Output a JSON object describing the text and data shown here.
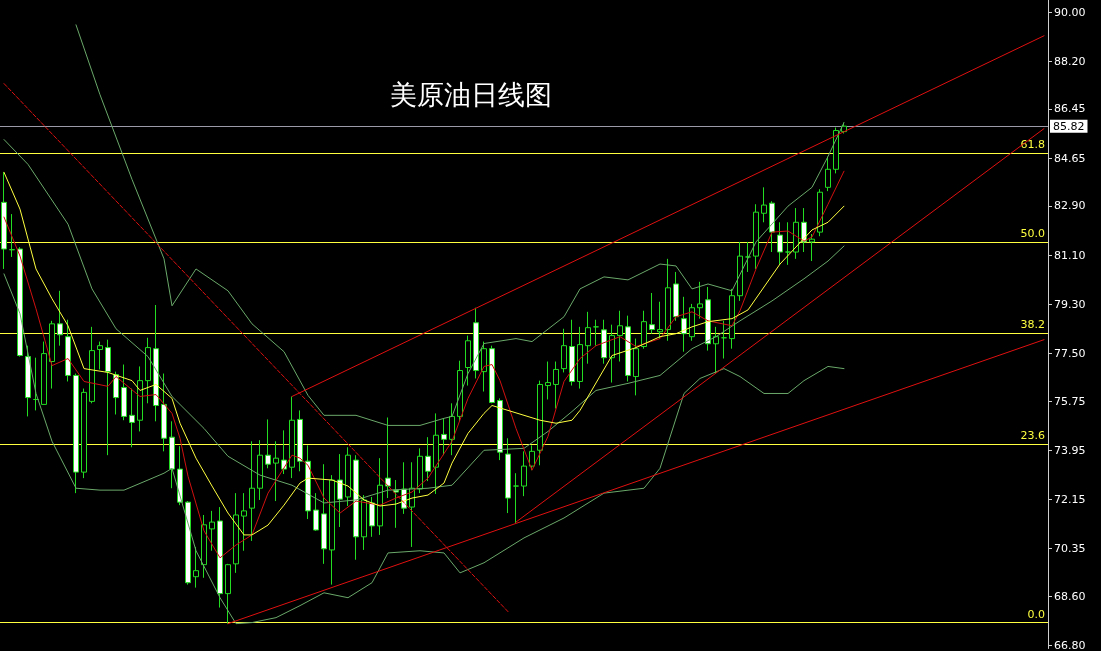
{
  "chart_data": {
    "type": "candlestick",
    "title": "美原油日线图",
    "color": "#22dd22",
    "grid": false,
    "marker": "none",
    "tick_labels": "y",
    "categories": [
      null,
      null,
      null,
      null,
      null,
      null,
      null,
      null,
      null,
      null,
      null,
      null,
      null,
      null,
      null,
      null,
      null,
      null,
      null,
      null,
      null,
      null,
      null,
      null,
      null,
      null,
      null,
      null,
      null,
      null,
      null,
      null,
      null,
      null,
      null,
      null,
      null,
      null,
      null,
      null,
      null,
      null,
      null,
      null,
      null,
      null,
      null,
      null,
      null,
      null,
      null,
      null,
      null,
      null,
      null,
      null,
      null,
      null,
      null,
      null,
      null,
      null,
      null,
      null,
      null,
      null,
      null,
      null,
      null,
      null,
      null,
      null,
      null,
      null,
      null,
      null,
      null,
      null,
      null,
      null,
      null,
      null,
      null,
      null,
      null,
      null,
      null,
      null,
      null,
      null,
      null,
      null,
      null,
      null,
      null,
      null,
      null,
      null,
      null,
      null,
      null,
      null,
      null,
      null,
      null,
      null,
      null,
      null,
      null,
      null,
      null,
      null,
      null,
      null,
      null,
      null,
      null,
      null,
      null,
      null,
      null,
      null,
      null,
      null,
      null,
      null,
      null,
      null,
      null,
      null,
      null
    ],
    "ohlc": [
      [
        83.03,
        84.13,
        80.59,
        81.32
      ],
      [
        81.29,
        82.6,
        81.03,
        81.3
      ],
      [
        81.32,
        81.39,
        77.38,
        77.42
      ],
      [
        77.38,
        77.78,
        75.19,
        75.88
      ],
      [
        75.81,
        77.34,
        75.41,
        75.81
      ],
      [
        75.63,
        77.93,
        75.63,
        77.49
      ],
      [
        77.2,
        78.69,
        76.21,
        78.58
      ],
      [
        78.58,
        79.79,
        77.78,
        78.18
      ],
      [
        78.11,
        78.73,
        76.47,
        76.69
      ],
      [
        76.69,
        76.76,
        72.38,
        73.15
      ],
      [
        73.15,
        76.21,
        72.93,
        76.07
      ],
      [
        75.74,
        78.47,
        75.67,
        77.6
      ],
      [
        77.64,
        77.93,
        76.91,
        77.78
      ],
      [
        77.71,
        78.0,
        73.77,
        76.83
      ],
      [
        76.72,
        76.83,
        75.26,
        75.88
      ],
      [
        76.25,
        77.09,
        75.05,
        75.19
      ],
      [
        75.23,
        76.21,
        74.06,
        74.97
      ],
      [
        75.05,
        77.02,
        74.64,
        76.5
      ],
      [
        76.5,
        78.07,
        75.67,
        77.71
      ],
      [
        77.67,
        79.27,
        75.01,
        75.59
      ],
      [
        75.63,
        76.76,
        73.91,
        74.39
      ],
      [
        74.43,
        75.01,
        72.56,
        73.26
      ],
      [
        73.26,
        74.1,
        71.94,
        72.05
      ],
      [
        72.05,
        72.09,
        69.03,
        69.1
      ],
      [
        69.32,
        70.41,
        68.92,
        69.54
      ],
      [
        69.76,
        71.58,
        69.28,
        71.22
      ],
      [
        71.07,
        71.73,
        70.27,
        71.32
      ],
      [
        71.36,
        71.87,
        68.19,
        68.7
      ],
      [
        68.7,
        69.79,
        67.6,
        69.76
      ],
      [
        69.79,
        72.38,
        69.46,
        71.58
      ],
      [
        71.54,
        72.38,
        70.27,
        71.73
      ],
      [
        71.83,
        74.28,
        70.63,
        72.56
      ],
      [
        72.56,
        74.32,
        72.13,
        73.77
      ],
      [
        73.77,
        75.08,
        73.29,
        73.44
      ],
      [
        73.48,
        74.28,
        72.09,
        73.66
      ],
      [
        73.59,
        74.68,
        73.08,
        73.26
      ],
      [
        73.33,
        75.92,
        72.93,
        75.05
      ],
      [
        75.08,
        75.41,
        73.18,
        73.55
      ],
      [
        73.55,
        74.13,
        71.43,
        71.73
      ],
      [
        71.76,
        72.38,
        71.0,
        71.03
      ],
      [
        71.62,
        73.44,
        69.79,
        70.34
      ],
      [
        70.3,
        73.04,
        69.03,
        72.86
      ],
      [
        72.86,
        73.81,
        71.14,
        72.16
      ],
      [
        72.24,
        74.06,
        71.91,
        73.77
      ],
      [
        73.59,
        73.77,
        69.94,
        70.78
      ],
      [
        70.78,
        72.31,
        70.3,
        72.13
      ],
      [
        72.02,
        72.24,
        70.78,
        71.18
      ],
      [
        71.18,
        73.66,
        70.85,
        72.67
      ],
      [
        72.93,
        75.15,
        72.2,
        72.64
      ],
      [
        72.49,
        72.86,
        71.11,
        72.42
      ],
      [
        72.53,
        73.51,
        71.62,
        71.83
      ],
      [
        71.87,
        73.51,
        70.41,
        72.56
      ],
      [
        72.53,
        74.02,
        72.38,
        73.73
      ],
      [
        73.73,
        74.43,
        72.82,
        73.18
      ],
      [
        73.33,
        75.3,
        72.35,
        74.5
      ],
      [
        74.53,
        75.12,
        73.77,
        74.35
      ],
      [
        74.35,
        75.67,
        73.77,
        75.19
      ],
      [
        75.19,
        77.23,
        75.01,
        76.87
      ],
      [
        76.98,
        78.15,
        76.32,
        77.96
      ],
      [
        78.62,
        79.17,
        76.58,
        76.87
      ],
      [
        76.83,
        77.93,
        76.1,
        77.67
      ],
      [
        77.67,
        77.78,
        75.67,
        75.7
      ],
      [
        75.77,
        75.85,
        73.59,
        73.88
      ],
      [
        73.81,
        74.39,
        71.65,
        72.2
      ],
      [
        72.64,
        73.11,
        71.29,
        72.64
      ],
      [
        72.64,
        73.91,
        72.27,
        73.37
      ],
      [
        73.37,
        74.13,
        73.22,
        73.91
      ],
      [
        73.95,
        76.5,
        73.4,
        76.36
      ],
      [
        76.32,
        77.2,
        75.81,
        76.43
      ],
      [
        76.36,
        77.2,
        75.48,
        76.91
      ],
      [
        76.94,
        78.4,
        76.8,
        77.78
      ],
      [
        77.75,
        78.73,
        76.32,
        76.47
      ],
      [
        76.47,
        78.47,
        76.21,
        77.82
      ],
      [
        77.78,
        79.02,
        77.12,
        78.44
      ],
      [
        78.47,
        78.73,
        77.78,
        78.47
      ],
      [
        78.36,
        78.73,
        77.12,
        77.34
      ],
      [
        77.34,
        78.55,
        76.43,
        78.15
      ],
      [
        78.15,
        79.06,
        77.2,
        78.51
      ],
      [
        78.47,
        78.88,
        76.47,
        76.69
      ],
      [
        76.65,
        78.04,
        75.96,
        77.67
      ],
      [
        77.75,
        79.06,
        77.67,
        78.66
      ],
      [
        78.55,
        79.71,
        78.22,
        78.37
      ],
      [
        78.29,
        79.39,
        78.04,
        78.37
      ],
      [
        78.37,
        80.96,
        77.96,
        79.9
      ],
      [
        80.04,
        80.48,
        78.69,
        78.84
      ],
      [
        78.77,
        79.57,
        77.56,
        78.22
      ],
      [
        78.11,
        79.31,
        77.96,
        79.17
      ],
      [
        79.17,
        80.12,
        78.77,
        79.31
      ],
      [
        79.46,
        79.93,
        77.6,
        77.85
      ],
      [
        77.85,
        78.47,
        76.76,
        78.11
      ],
      [
        78.07,
        78.69,
        77.31,
        78.07
      ],
      [
        78.04,
        79.86,
        77.67,
        79.61
      ],
      [
        79.61,
        81.58,
        79.42,
        81.06
      ],
      [
        81.03,
        81.58,
        80.48,
        81.03
      ],
      [
        81.06,
        82.96,
        80.59,
        82.67
      ],
      [
        82.63,
        83.58,
        82.3,
        82.93
      ],
      [
        83.0,
        83.07,
        81.21,
        81.94
      ],
      [
        81.83,
        82.3,
        80.74,
        81.21
      ],
      [
        81.21,
        82.3,
        80.74,
        81.21
      ],
      [
        81.21,
        82.82,
        80.96,
        82.3
      ],
      [
        82.3,
        82.82,
        81.21,
        81.58
      ],
      [
        81.58,
        81.87,
        80.88,
        81.68
      ],
      [
        81.94,
        83.51,
        81.79,
        83.4
      ],
      [
        83.58,
        84.71,
        83.44,
        84.24
      ],
      [
        84.24,
        85.77,
        84.09,
        85.66
      ],
      [
        85.62,
        85.95,
        85.55,
        85.82
      ],
      null,
      null,
      null,
      null,
      null,
      null,
      null,
      null,
      null,
      null,
      null,
      null,
      null,
      null,
      null,
      null,
      null,
      null,
      null,
      null,
      null,
      null,
      null,
      null,
      null
    ],
    "series": [
      {
        "type": "line",
        "color": "#6aa86a",
        "values": [
          null,
          null,
          null,
          null,
          null,
          null,
          null,
          null,
          null,
          89.53,
          null,
          null,
          86.97,
          null,
          null,
          null,
          83.87,
          null,
          null,
          null,
          80.96,
          79.24,
          null,
          null,
          80.59,
          null,
          null,
          null,
          79.79,
          null,
          null,
          78.58,
          null,
          null,
          null,
          77.56,
          null,
          null,
          75.96,
          null,
          75.23,
          null,
          null,
          null,
          75.23,
          null,
          null,
          null,
          74.86,
          null,
          null,
          null,
          74.86,
          null,
          null,
          75.12,
          75.19,
          null,
          76.76,
          null,
          77.86,
          null,
          null,
          null,
          78.04,
          null,
          77.93,
          null,
          null,
          null,
          78.84,
          null,
          79.86,
          null,
          null,
          80.3,
          null,
          null,
          80.19,
          null,
          null,
          null,
          80.77,
          null,
          80.7,
          null,
          79.86,
          null,
          80.04,
          null,
          null,
          79.79,
          null,
          null,
          81.58,
          null,
          null,
          null,
          82.89,
          null,
          null,
          83.58,
          null,
          84.71,
          null,
          85.95,
          null,
          null,
          null,
          null,
          null,
          null,
          null,
          null,
          null,
          null,
          null,
          null,
          null,
          null,
          null,
          null,
          null,
          null,
          null,
          null,
          null,
          null,
          null,
          null,
          null
        ]
      },
      {
        "type": "line",
        "color": "#6aa86a",
        "values": [
          85.33,
          null,
          null,
          84.42,
          null,
          null,
          null,
          null,
          82.23,
          null,
          null,
          79.86,
          null,
          null,
          78.4,
          null,
          null,
          null,
          77.38,
          null,
          null,
          75.92,
          null,
          null,
          null,
          74.75,
          null,
          null,
          73.73,
          null,
          null,
          null,
          73.04,
          null,
          null,
          null,
          72.67,
          null,
          null,
          null,
          72.02,
          null,
          null,
          null,
          72.13,
          null,
          null,
          null,
          72.49,
          null,
          null,
          null,
          null,
          72.56,
          null,
          null,
          72.67,
          null,
          null,
          null,
          73.95,
          null,
          null,
          null,
          null,
          74.02,
          null,
          null,
          74.64,
          null,
          null,
          75.37,
          null,
          null,
          76.14,
          null,
          null,
          null,
          76.4,
          null,
          null,
          null,
          76.69,
          null,
          null,
          null,
          77.67,
          null,
          null,
          78.11,
          null,
          null,
          78.69,
          null,
          null,
          null,
          79.42,
          null,
          null,
          null,
          80.23,
          null,
          null,
          80.88,
          null,
          81.43,
          null,
          null,
          null,
          null,
          null,
          null,
          null,
          null,
          null,
          null,
          null,
          null,
          null,
          null,
          null,
          null,
          null,
          null,
          null,
          null,
          null,
          null,
          null,
          null,
          null
        ]
      },
      {
        "type": "line",
        "color": "#6aa86a",
        "values": [
          80.41,
          null,
          78.95,
          null,
          76.03,
          null,
          74.28,
          null,
          null,
          72.56,
          null,
          null,
          72.49,
          null,
          null,
          72.49,
          null,
          null,
          72.86,
          null,
          73.11,
          73.29,
          null,
          null,
          70.27,
          null,
          null,
          68.55,
          null,
          67.6,
          null,
          67.64,
          null,
          null,
          67.82,
          null,
          null,
          68.26,
          null,
          null,
          68.73,
          null,
          null,
          68.55,
          null,
          null,
          69.1,
          null,
          70.19,
          null,
          null,
          null,
          70.27,
          null,
          null,
          70.19,
          null,
          69.46,
          null,
          null,
          69.83,
          null,
          null,
          null,
          null,
          70.74,
          null,
          null,
          null,
          null,
          71.47,
          null,
          null,
          null,
          null,
          72.38,
          null,
          null,
          null,
          null,
          72.56,
          null,
          73.29,
          null,
          null,
          76.03,
          null,
          76.58,
          null,
          null,
          76.94,
          null,
          76.65,
          null,
          null,
          76.03,
          null,
          null,
          76.03,
          null,
          76.5,
          null,
          null,
          77.02,
          null,
          76.94,
          null,
          null,
          null,
          null,
          null,
          null,
          null,
          null,
          null,
          null,
          null,
          null,
          null,
          null,
          null,
          null,
          null,
          null,
          null,
          null,
          null,
          null,
          null,
          null,
          null
        ]
      },
      {
        "type": "line",
        "color": "#d01010",
        "values": [
          82.49,
          null,
          81.06,
          null,
          79.13,
          null,
          77.05,
          null,
          77.31,
          null,
          76.47,
          null,
          null,
          76.29,
          76.65,
          null,
          null,
          75.92,
          null,
          75.99,
          null,
          75.3,
          74.39,
          73.0,
          null,
          71.0,
          null,
          70.01,
          null,
          70.48,
          null,
          70.85,
          null,
          72.38,
          null,
          null,
          73.77,
          73.66,
          73.4,
          null,
          72.2,
          null,
          71.65,
          null,
          72.09,
          null,
          null,
          71.94,
          null,
          72.2,
          null,
          72.42,
          null,
          72.93,
          null,
          null,
          74.28,
          null,
          75.85,
          null,
          77.02,
          77.09,
          76.5,
          null,
          74.75,
          null,
          73.22,
          null,
          74.46,
          null,
          76.47,
          null,
          77.31,
          null,
          77.78,
          null,
          null,
          78.11,
          null,
          77.75,
          null,
          null,
          78.04,
          null,
          78.84,
          null,
          79.02,
          null,
          78.69,
          null,
          null,
          78.51,
          79.06,
          null,
          80.59,
          null,
          81.94,
          null,
          81.98,
          null,
          81.61,
          81.76,
          null,
          82.96,
          null,
          84.17,
          null,
          null,
          null,
          null,
          null,
          null,
          null,
          null,
          null,
          null,
          null,
          null,
          null,
          null,
          null,
          null,
          null,
          null,
          null,
          null,
          null,
          null,
          null,
          null,
          null
        ]
      },
      {
        "type": "line",
        "color": "#ffff40",
        "values": [
          84.13,
          null,
          82.78,
          null,
          80.59,
          null,
          79.5,
          null,
          78.51,
          null,
          76.94,
          null,
          null,
          76.8,
          null,
          null,
          76.5,
          76.14,
          null,
          76.36,
          null,
          75.85,
          74.94,
          null,
          73.66,
          null,
          72.64,
          null,
          71.65,
          null,
          70.85,
          70.85,
          null,
          71.21,
          null,
          71.94,
          null,
          72.75,
          72.93,
          null,
          null,
          72.86,
          null,
          72.64,
          null,
          72.13,
          null,
          71.91,
          null,
          71.98,
          null,
          72.2,
          null,
          72.31,
          null,
          72.75,
          73.48,
          null,
          74.57,
          null,
          75.3,
          75.59,
          null,
          75.41,
          null,
          null,
          null,
          75.05,
          null,
          74.94,
          null,
          75.05,
          75.41,
          null,
          null,
          null,
          77.42,
          null,
          null,
          77.71,
          null,
          null,
          78.11,
          null,
          78.22,
          null,
          78.47,
          null,
          78.66,
          null,
          null,
          78.77,
          null,
          79.09,
          null,
          null,
          null,
          80.77,
          null,
          null,
          null,
          82.02,
          null,
          82.3,
          null,
          82.89,
          null,
          null,
          null,
          null,
          null,
          null,
          null,
          null,
          null,
          null,
          null,
          null,
          null,
          null,
          null,
          null,
          null,
          null,
          null,
          null,
          null,
          null,
          null,
          null,
          null
        ]
      },
      {
        "type": "line",
        "color": "#e01010",
        "values": [
          null,
          null,
          null,
          null,
          null,
          null,
          null,
          null,
          null,
          null,
          null,
          null,
          null,
          null,
          null,
          null,
          null,
          null,
          null,
          null,
          null,
          null,
          null,
          null,
          null,
          null,
          null,
          null,
          null,
          null,
          null,
          null,
          null,
          null,
          null,
          null,
          75.92,
          null,
          null,
          null,
          null,
          null,
          null,
          null,
          null,
          null,
          null,
          null,
          null,
          null,
          null,
          null,
          null,
          null,
          null,
          null,
          null,
          null,
          null,
          null,
          null,
          null,
          null,
          null,
          null,
          null,
          null,
          null,
          null,
          null,
          null,
          null,
          null,
          null,
          null,
          null,
          null,
          null,
          null,
          null,
          null,
          null,
          null,
          null,
          null,
          null,
          null,
          null,
          null,
          null,
          null,
          null,
          null,
          null,
          null,
          null,
          null,
          null,
          null,
          null,
          null,
          null,
          null,
          null,
          null,
          null,
          null,
          null,
          null,
          null,
          null,
          null,
          null,
          null,
          null,
          null,
          null,
          null,
          null,
          null,
          null,
          null,
          null,
          null,
          null,
          null,
          null,
          null,
          null,
          null,
          89.13
        ]
      },
      {
        "type": "line",
        "color": "#e01010",
        "values": [
          null,
          null,
          null,
          null,
          null,
          null,
          null,
          null,
          null,
          null,
          null,
          null,
          null,
          null,
          null,
          null,
          null,
          null,
          null,
          null,
          null,
          null,
          null,
          null,
          null,
          null,
          null,
          null,
          null,
          null,
          null,
          null,
          null,
          null,
          null,
          null,
          null,
          null,
          null,
          null,
          null,
          null,
          null,
          null,
          null,
          null,
          null,
          null,
          null,
          null,
          null,
          null,
          null,
          null,
          null,
          null,
          null,
          null,
          null,
          null,
          null,
          null,
          null,
          null,
          71.32,
          null,
          null,
          null,
          null,
          null,
          null,
          null,
          null,
          null,
          null,
          null,
          null,
          null,
          null,
          null,
          null,
          null,
          null,
          null,
          null,
          null,
          null,
          null,
          null,
          null,
          null,
          null,
          null,
          null,
          null,
          null,
          null,
          null,
          null,
          null,
          null,
          null,
          null,
          null,
          null,
          null,
          null,
          null,
          null,
          null,
          null,
          null,
          null,
          null,
          null,
          null,
          null,
          null,
          null,
          null,
          null,
          null,
          null,
          null,
          null,
          null,
          null,
          null,
          null,
          null,
          85.73
        ]
      },
      {
        "type": "line",
        "color": "#e01010",
        "values": [
          null,
          null,
          null,
          null,
          null,
          null,
          null,
          null,
          null,
          null,
          null,
          null,
          null,
          null,
          null,
          null,
          null,
          null,
          null,
          null,
          null,
          null,
          null,
          null,
          null,
          null,
          null,
          null,
          67.6,
          null,
          null,
          null,
          null,
          null,
          null,
          null,
          null,
          null,
          null,
          null,
          null,
          null,
          null,
          null,
          null,
          null,
          null,
          null,
          null,
          null,
          null,
          null,
          null,
          null,
          null,
          null,
          null,
          null,
          null,
          null,
          null,
          null,
          null,
          null,
          null,
          null,
          null,
          null,
          null,
          null,
          null,
          null,
          null,
          null,
          null,
          null,
          null,
          null,
          null,
          null,
          null,
          null,
          null,
          null,
          null,
          null,
          null,
          null,
          null,
          null,
          null,
          null,
          null,
          null,
          null,
          null,
          null,
          null,
          null,
          null,
          null,
          null,
          null,
          null,
          null,
          null,
          null,
          null,
          null,
          null,
          null,
          null,
          null,
          null,
          null,
          null,
          null,
          null,
          null,
          null,
          null,
          null,
          null,
          null,
          null,
          null,
          null,
          null,
          null,
          null,
          78.0
        ]
      },
      {
        "type": "line",
        "color": "#e01010",
        "line_style": "dashed",
        "values": [
          87.38,
          null,
          null,
          null,
          null,
          null,
          null,
          null,
          null,
          null,
          null,
          null,
          null,
          null,
          null,
          null,
          null,
          null,
          null,
          null,
          null,
          null,
          null,
          null,
          null,
          null,
          null,
          null,
          null,
          null,
          null,
          null,
          null,
          null,
          null,
          null,
          null,
          null,
          null,
          null,
          null,
          null,
          null,
          null,
          null,
          null,
          null,
          null,
          null,
          null,
          null,
          null,
          null,
          null,
          null,
          null,
          null,
          null,
          null,
          null,
          null,
          null,
          null,
          68.04,
          null,
          null,
          null,
          null,
          null,
          null,
          null,
          null,
          null,
          null,
          null,
          null,
          null,
          null,
          null,
          null,
          null,
          null,
          null,
          null,
          null,
          null,
          null,
          null,
          null,
          null,
          null,
          null,
          null,
          null,
          null,
          null,
          null,
          null,
          null,
          null,
          null,
          null,
          null,
          null,
          null,
          null,
          null,
          null,
          null,
          null,
          null,
          null,
          null,
          null,
          null,
          null,
          null,
          null,
          null,
          null,
          null,
          null,
          null,
          null,
          null,
          null,
          null,
          null,
          null,
          null,
          null
        ]
      }
    ],
    "ylim": [
      66.69,
      90.44
    ],
    "yticks": [
      {
        "value": 90,
        "label": "90.00"
      },
      {
        "value": 88.2,
        "label": "88.20"
      },
      {
        "value": 86.45,
        "label": "86.45"
      },
      {
        "value": 84.65,
        "label": "84.65"
      },
      {
        "value": 82.9,
        "label": "82.90"
      },
      {
        "value": 81.1,
        "label": "81.10"
      },
      {
        "value": 79.3,
        "label": "79.30"
      },
      {
        "value": 77.5,
        "label": "77.50"
      },
      {
        "value": 75.75,
        "label": "75.75"
      },
      {
        "value": 73.95,
        "label": "73.95"
      },
      {
        "value": 72.15,
        "label": "72.15"
      },
      {
        "value": 70.35,
        "label": "70.35"
      },
      {
        "value": 68.6,
        "label": "68.60"
      },
      {
        "value": 66.8,
        "label": "66.80"
      }
    ],
    "ref_lines": [
      {
        "axis": "y",
        "value": 67.64,
        "color": "#ffff40"
      },
      {
        "axis": "y",
        "value": 74.17,
        "color": "#ffff40"
      },
      {
        "axis": "y",
        "value": 78.25,
        "color": "#ffff40"
      },
      {
        "axis": "y",
        "value": 81.57,
        "color": "#ffff40"
      },
      {
        "axis": "y",
        "value": 84.82,
        "color": "#ffff40"
      },
      {
        "axis": "y",
        "value": 85.82,
        "label": "85.82",
        "color": "#9a9aa8"
      }
    ],
    "annotations": [
      {
        "text": "0.0",
        "y": 67.64
      },
      {
        "text": "23.6",
        "y": 74.17
      },
      {
        "text": "38.2",
        "y": 78.25
      },
      {
        "text": "50.0",
        "y": 81.57
      },
      {
        "text": "61.8",
        "y": 84.82
      }
    ]
  }
}
